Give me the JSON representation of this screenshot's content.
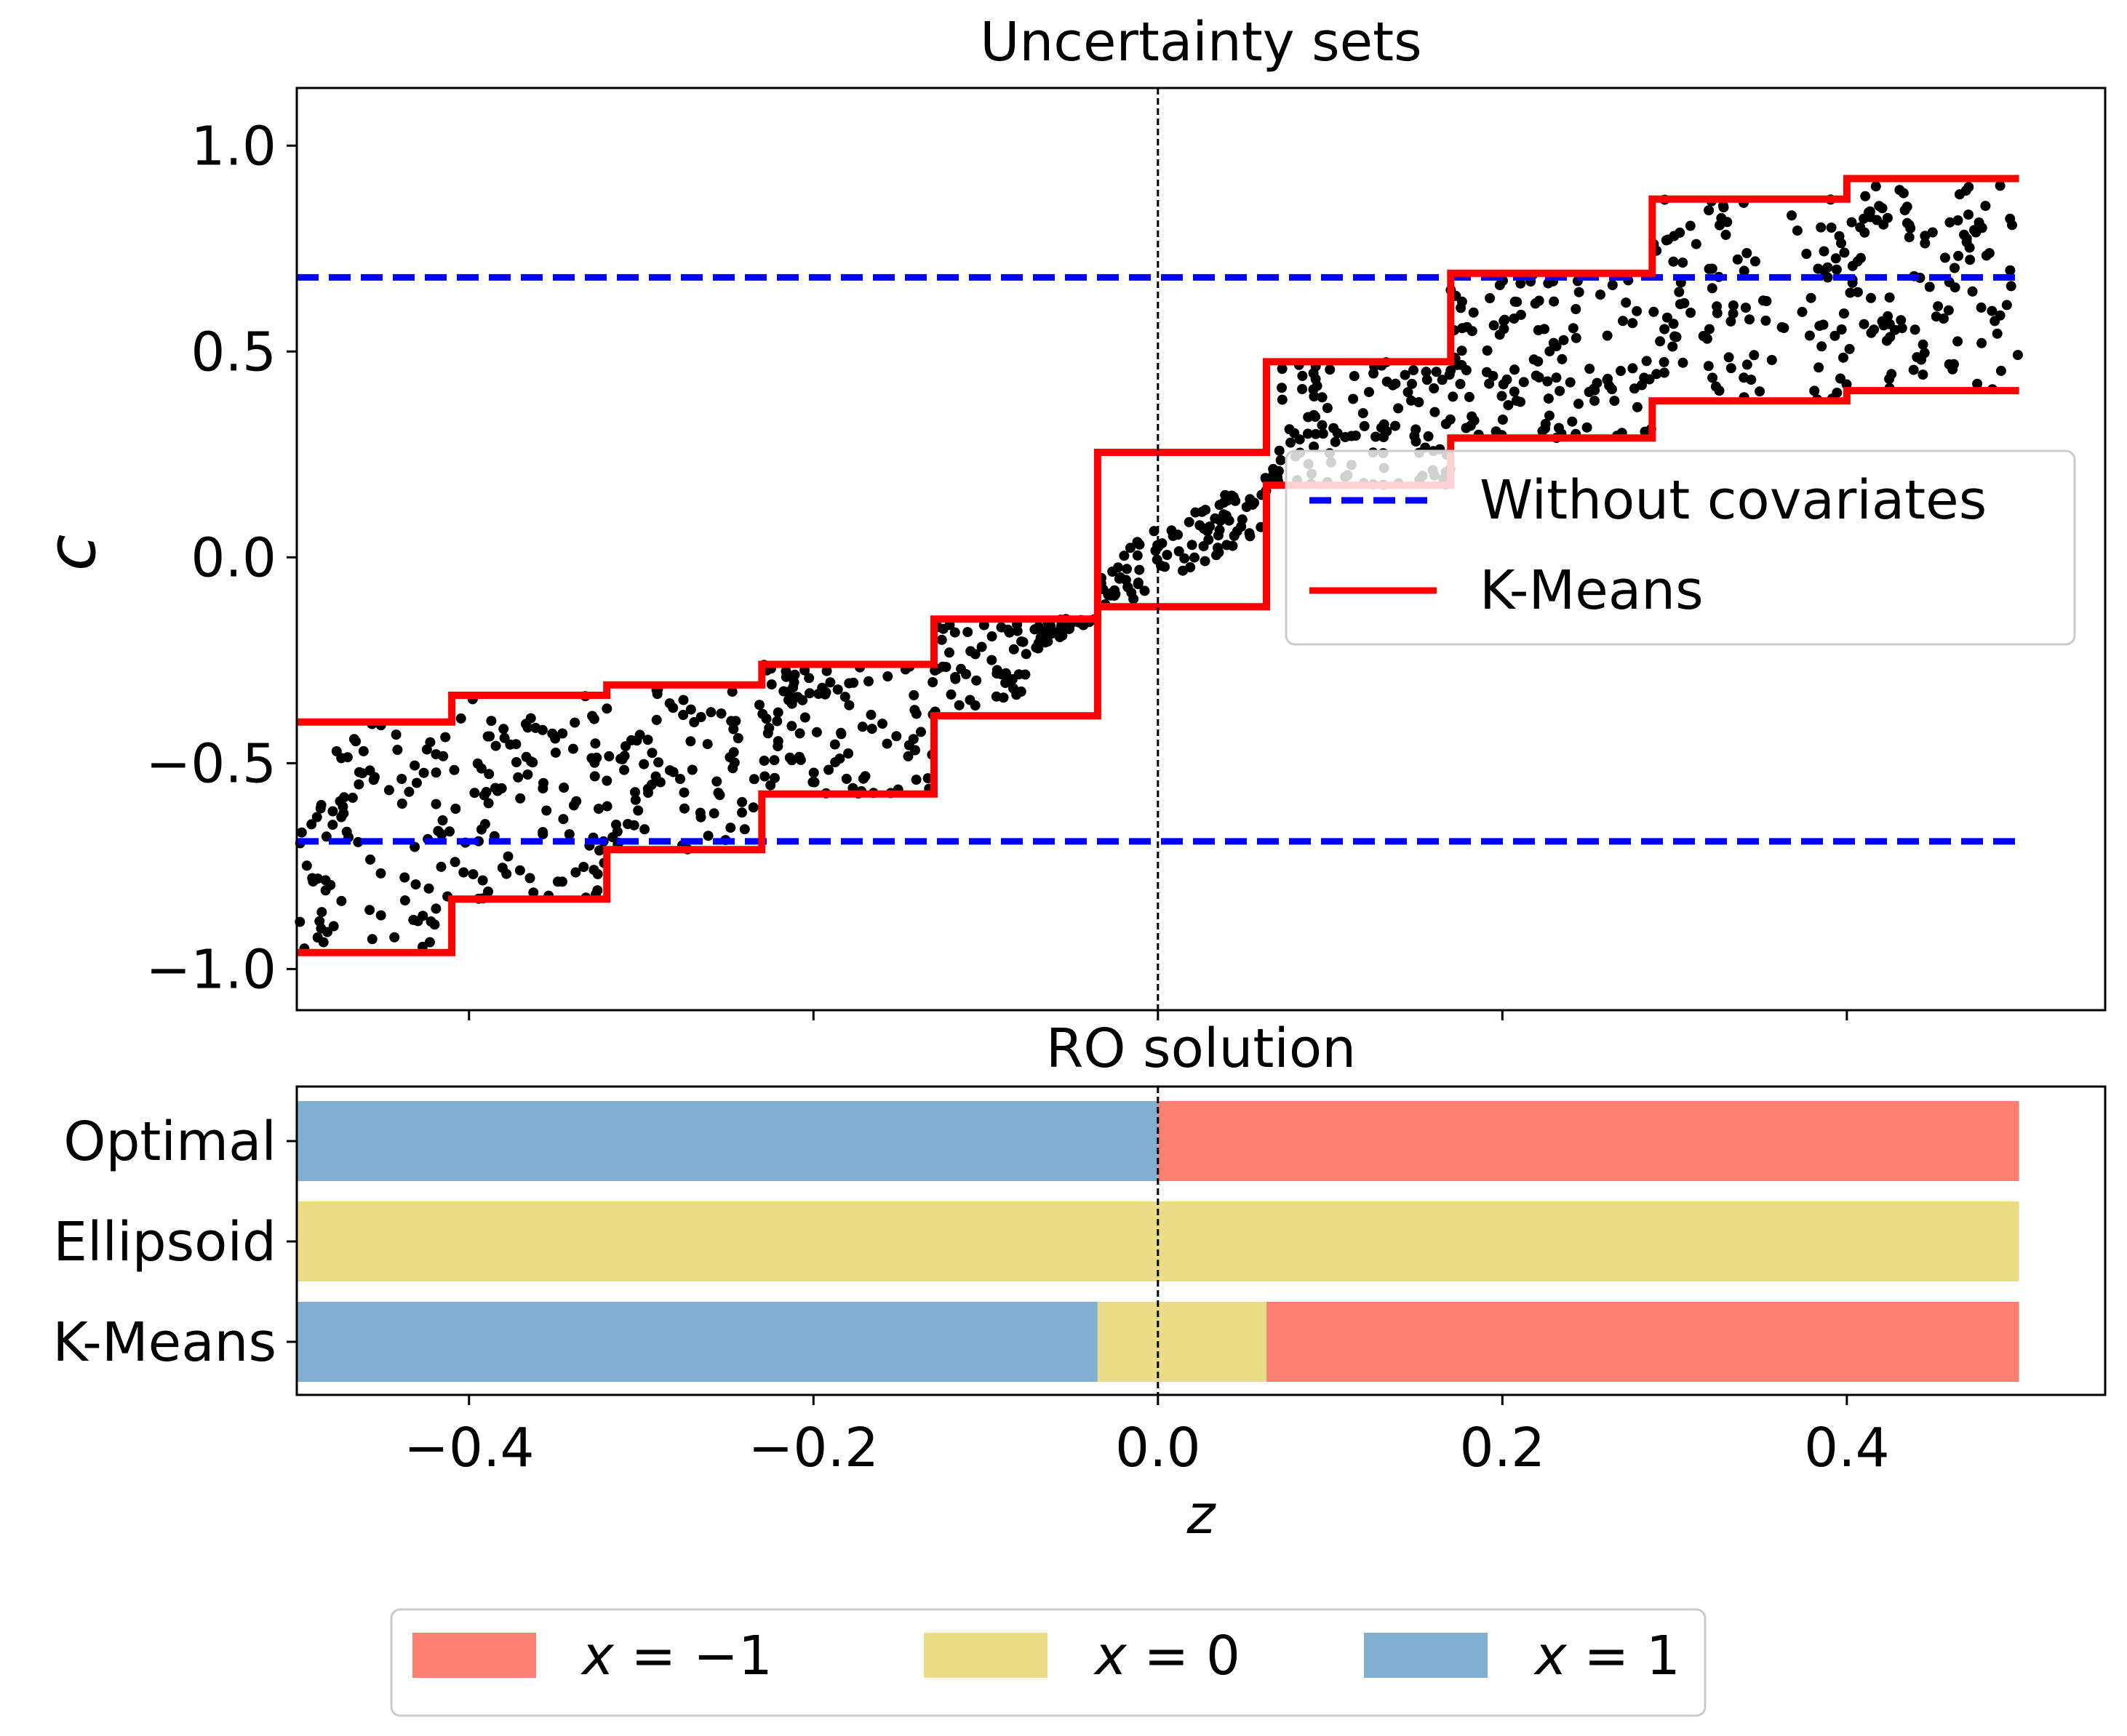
{
  "colors": {
    "points": "#000000",
    "no_covariates": "#0000ff",
    "kmeans": "#ff0000",
    "x_minus_1": "#fa8072",
    "x_0": "#ebdc87",
    "x_1": "#80afd2",
    "zero_line": "#000000"
  },
  "chart_data": [
    {
      "id": "uncertainty_sets",
      "type": "scatter",
      "title": "Uncertainty sets",
      "xlabel": "",
      "ylabel": "c",
      "xlim": [
        -0.5,
        0.55
      ],
      "ylim": [
        -1.1,
        1.14
      ],
      "yticks": [
        -1.0,
        -0.5,
        0.0,
        0.5,
        1.0
      ],
      "ytick_labels": [
        "−1.0",
        "−0.5",
        "0.0",
        "0.5",
        "1.0"
      ],
      "xticks": [
        -0.4,
        -0.2,
        0.0,
        0.2,
        0.4
      ],
      "grid": false,
      "vertical_reference_line": 0.0,
      "legend": {
        "position": "center-right",
        "entries": [
          {
            "label": "Without covariates",
            "style": "dashed",
            "color_key": "no_covariates"
          },
          {
            "label": "K-Means",
            "style": "solid",
            "color_key": "kmeans"
          }
        ]
      },
      "scatter": {
        "n_points": 1000,
        "z_range": [
          -0.5,
          0.5
        ],
        "cluster_breaks": [
          -0.5,
          -0.41,
          -0.32,
          -0.23,
          -0.13,
          -0.035,
          0.063,
          0.17,
          0.287,
          0.4,
          0.5
        ],
        "cluster_lower": [
          -0.96,
          -0.83,
          -0.71,
          -0.575,
          -0.385,
          -0.12,
          0.175,
          0.29,
          0.38,
          0.405
        ],
        "cluster_upper": [
          -0.4,
          -0.335,
          -0.31,
          -0.26,
          -0.15,
          0.255,
          0.475,
          0.69,
          0.87,
          0.92
        ]
      },
      "series": [
        {
          "name": "Without covariates",
          "kind": "hlines",
          "values": [
            0.68,
            -0.69
          ],
          "x_range": [
            -0.5,
            0.5
          ]
        },
        {
          "name": "K-Means",
          "kind": "step",
          "breaks": [
            -0.5,
            -0.41,
            -0.32,
            -0.23,
            -0.13,
            -0.035,
            0.063,
            0.17,
            0.287,
            0.4,
            0.5
          ],
          "upper": [
            -0.4,
            -0.335,
            -0.31,
            -0.26,
            -0.15,
            0.255,
            0.475,
            0.69,
            0.87,
            0.92
          ],
          "lower": [
            -0.96,
            -0.83,
            -0.71,
            -0.575,
            -0.385,
            -0.12,
            0.175,
            0.29,
            0.38,
            0.405
          ]
        }
      ]
    },
    {
      "id": "ro_solution",
      "type": "bar",
      "orientation": "horizontal",
      "title": "RO solution",
      "xlabel": "z",
      "ylabel": "",
      "xlim": [
        -0.5,
        0.55
      ],
      "xticks": [
        -0.4,
        -0.2,
        0.0,
        0.2,
        0.4
      ],
      "xtick_labels": [
        "−0.4",
        "−0.2",
        "0.0",
        "0.2",
        "0.4"
      ],
      "categories": [
        "Optimal",
        "Ellipsoid",
        "K-Means"
      ],
      "segments": [
        [
          {
            "from": -0.5,
            "to": 0.0,
            "x": 1
          },
          {
            "from": 0.0,
            "to": 0.5,
            "x": -1
          }
        ],
        [
          {
            "from": -0.5,
            "to": 0.5,
            "x": 0
          }
        ],
        [
          {
            "from": -0.5,
            "to": -0.035,
            "x": 1
          },
          {
            "from": -0.035,
            "to": 0.063,
            "x": 0
          },
          {
            "from": 0.063,
            "to": 0.5,
            "x": -1
          }
        ]
      ],
      "vertical_reference_line": 0.0,
      "legend": {
        "position": "bottom-center",
        "entries": [
          {
            "label_var": "x",
            "label_eq": " = −1",
            "color_key": "x_minus_1"
          },
          {
            "label_var": "x",
            "label_eq": " = 0",
            "color_key": "x_0"
          },
          {
            "label_var": "x",
            "label_eq": " = 1",
            "color_key": "x_1"
          }
        ]
      }
    }
  ]
}
